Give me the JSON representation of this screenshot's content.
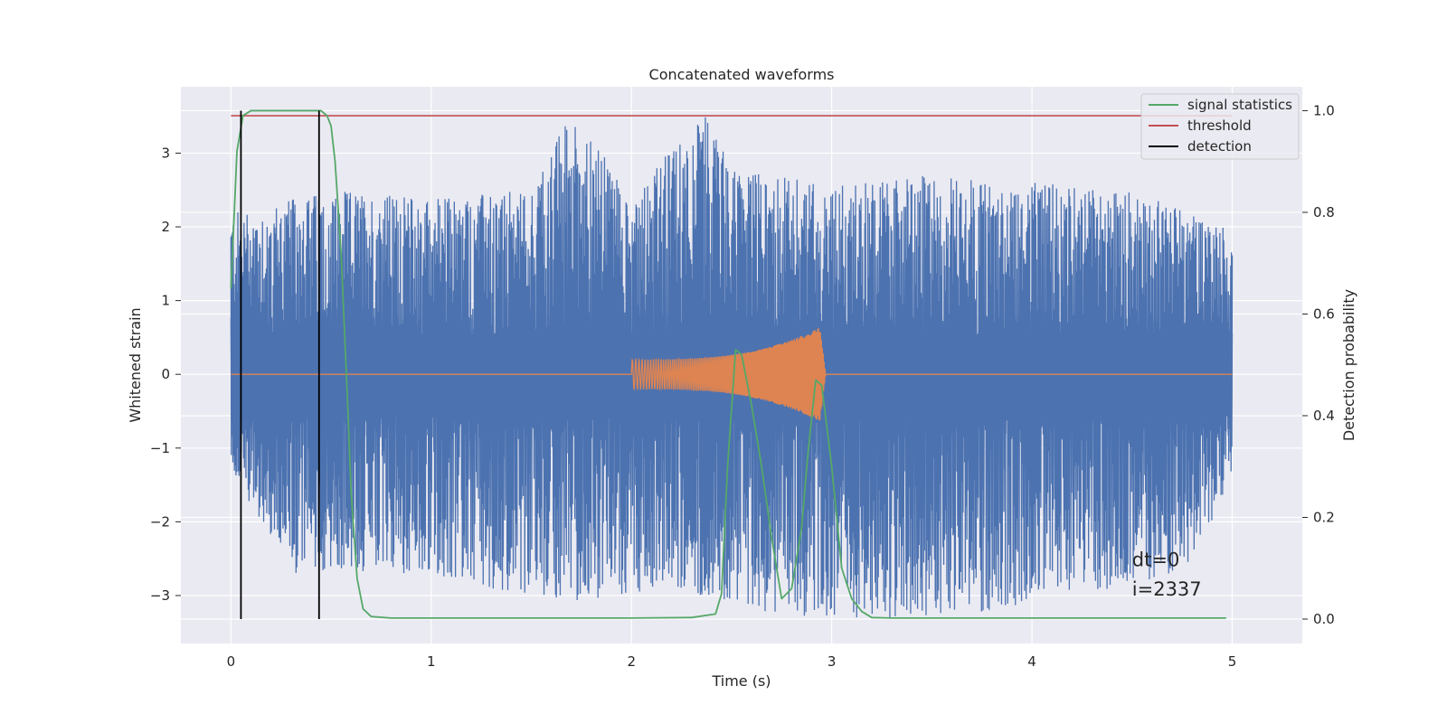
{
  "chart_data": {
    "type": "line",
    "title": "Concatenated waveforms",
    "xlabel": "Time (s)",
    "ylabel": "Whitened strain",
    "ylabel_right": "Detection probability",
    "xlim": [
      -0.25,
      5.35
    ],
    "ylim": [
      -3.65,
      3.9
    ],
    "ylim_right": [
      -0.048,
      1.047
    ],
    "x_ticks": [
      0,
      1,
      2,
      3,
      4,
      5
    ],
    "x_tick_labels": [
      "0",
      "1",
      "2",
      "3",
      "4",
      "5"
    ],
    "y_ticks": [
      -3,
      -2,
      -1,
      0,
      1,
      2,
      3
    ],
    "y_tick_labels": [
      "−3",
      "−2",
      "−1",
      "0",
      "1",
      "2",
      "3"
    ],
    "y_right_ticks": [
      0.0,
      0.2,
      0.4,
      0.6,
      0.8,
      1.0
    ],
    "y_right_tick_labels": [
      "0.0",
      "0.2",
      "0.4",
      "0.6",
      "0.8",
      "1.0"
    ],
    "grid": true,
    "legend_position": "top-right",
    "series": [
      {
        "name": "",
        "axis": "left",
        "style": "noise",
        "color": "#4c72b0",
        "x_range": [
          0,
          5
        ],
        "envelope_top": [
          [
            0,
            2.2
          ],
          [
            0.5,
            2.5
          ],
          [
            1,
            2.4
          ],
          [
            1.5,
            2.5
          ],
          [
            1.69,
            3.55
          ],
          [
            2,
            2.5
          ],
          [
            2.38,
            3.55
          ],
          [
            2.5,
            2.8
          ],
          [
            3,
            2.6
          ],
          [
            3.5,
            2.7
          ],
          [
            4,
            2.6
          ],
          [
            4.5,
            2.5
          ],
          [
            5,
            2.0
          ]
        ],
        "envelope_bottom": [
          [
            0,
            -1.3
          ],
          [
            0.3,
            -2.7
          ],
          [
            0.9,
            -2.7
          ],
          [
            1.7,
            -3.1
          ],
          [
            2.2,
            -2.9
          ],
          [
            2.8,
            -3.3
          ],
          [
            3.6,
            -3.3
          ],
          [
            4.4,
            -2.9
          ],
          [
            4.75,
            -2.7
          ],
          [
            5,
            -1.5
          ]
        ]
      },
      {
        "name": "",
        "axis": "left",
        "style": "chirp",
        "color": "#dd8452",
        "x_range": [
          0,
          5
        ],
        "chirp_start": 2.0,
        "chirp_end": 2.97,
        "amplitude_start": 0.2,
        "amplitude_peak": 0.68
      },
      {
        "name": "signal statistics",
        "axis": "right",
        "color": "#55a868",
        "x": [
          0,
          0.03,
          0.06,
          0.1,
          0.15,
          0.2,
          0.3,
          0.4,
          0.45,
          0.48,
          0.5,
          0.52,
          0.55,
          0.58,
          0.6,
          0.63,
          0.66,
          0.7,
          0.8,
          1.0,
          1.5,
          2.0,
          2.3,
          2.42,
          2.45,
          2.48,
          2.52,
          2.55,
          2.6,
          2.65,
          2.7,
          2.75,
          2.8,
          2.85,
          2.88,
          2.92,
          2.95,
          3.0,
          3.05,
          3.1,
          3.15,
          3.2,
          3.3,
          3.5,
          4.0,
          4.5,
          4.97
        ],
        "y": [
          0.65,
          0.92,
          0.99,
          1.0,
          1.0,
          1.0,
          1.0,
          1.0,
          1.0,
          0.99,
          0.97,
          0.9,
          0.72,
          0.45,
          0.25,
          0.08,
          0.02,
          0.005,
          0.002,
          0.002,
          0.002,
          0.002,
          0.003,
          0.01,
          0.05,
          0.3,
          0.53,
          0.52,
          0.42,
          0.3,
          0.16,
          0.04,
          0.06,
          0.18,
          0.32,
          0.47,
          0.46,
          0.3,
          0.1,
          0.04,
          0.015,
          0.003,
          0.002,
          0.002,
          0.002,
          0.002,
          0.002
        ]
      },
      {
        "name": "threshold",
        "axis": "right",
        "color": "#c44e52",
        "x": [
          0,
          5
        ],
        "y": [
          0.99,
          0.99
        ]
      },
      {
        "name": "detection",
        "axis": "right",
        "color": "#000000",
        "type": "vlines",
        "x": [
          0.05,
          0.44
        ],
        "y_range": [
          0,
          1.0
        ]
      }
    ],
    "annotations": [
      {
        "text": "dt=0",
        "x": 4.5,
        "y": -2.6
      },
      {
        "text": "i=2337",
        "x": 4.5,
        "y": -3.0
      }
    ]
  }
}
